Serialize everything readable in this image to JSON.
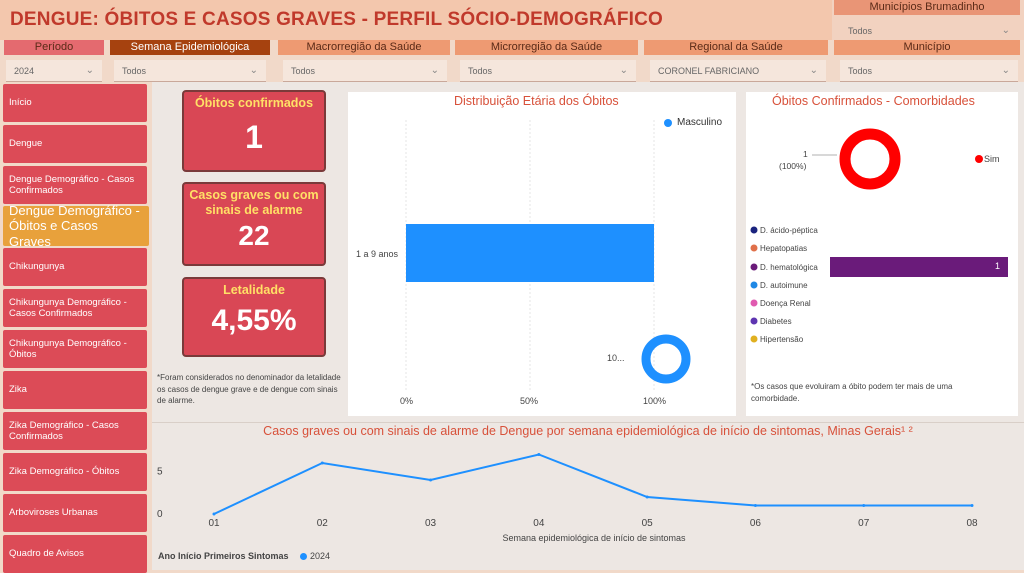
{
  "header": {
    "title": "DENGUE: ÓBITOS E CASOS GRAVES - PERFIL SÓCIO-DEMOGRÁFICO"
  },
  "filters": {
    "periodo": {
      "label": "Período",
      "value": "2024"
    },
    "semana": {
      "label": "Semana Epidemiológica",
      "value": "Todos"
    },
    "macro": {
      "label": "Macrorregião da Saúde",
      "value": "Todos"
    },
    "micro": {
      "label": "Microrregião da Saúde",
      "value": "Todos"
    },
    "regional": {
      "label": "Regional da Saúde",
      "value": "CORONEL FABRICIANO"
    },
    "municipio": {
      "label": "Município",
      "value": "Todos"
    },
    "municipios_bru": {
      "label": "Municípios Brumadinho",
      "value": "Todos"
    }
  },
  "sidebar": {
    "items": [
      {
        "label": "Início"
      },
      {
        "label": "Dengue"
      },
      {
        "label": "Dengue Demográfico - Casos Confirmados"
      },
      {
        "label": "Dengue Demográfico - Óbitos e Casos Graves"
      },
      {
        "label": "Chikungunya"
      },
      {
        "label": "Chikungunya Demográfico - Casos Confirmados"
      },
      {
        "label": "Chikungunya Demográfico - Óbitos"
      },
      {
        "label": "Zika"
      },
      {
        "label": "Zika Demográfico - Casos Confirmados"
      },
      {
        "label": "Zika Demográfico - Óbitos"
      },
      {
        "label": "Arboviroses Urbanas"
      },
      {
        "label": "Quadro de Avisos"
      }
    ]
  },
  "kpis": {
    "obitos": {
      "title": "Óbitos confirmados",
      "value": "1"
    },
    "graves": {
      "title": "Casos graves ou com sinais de alarme",
      "value": "22"
    },
    "letalidade": {
      "title": "Letalidade",
      "value": "4,55%"
    },
    "note": "*Foram considerados no denominador da letalidade os casos de dengue grave e de dengue com sinais de alarme."
  },
  "colors": {
    "accent_red": "#d94755",
    "active_orange": "#e8a13b",
    "bar_blue": "#1e90ff",
    "donut_red": "#ff0000",
    "comorb_purple": "#6a1b7a"
  },
  "age_chart": {
    "title": "Distribuição Etária dos Óbitos",
    "legend": "Masculino",
    "category": "1 a 9 anos",
    "ticks": [
      "0%",
      "50%",
      "100%"
    ],
    "donut_label": "10..."
  },
  "comorb_chart": {
    "title": "Óbitos Confirmados - Comorbidades",
    "donut_label_count": "1",
    "donut_label_pct": "(100%)",
    "donut_legend": "Sim",
    "legend": [
      {
        "label": "D. ácido-péptica",
        "color": "#1a237e"
      },
      {
        "label": "Hepatopatias",
        "color": "#e0704a"
      },
      {
        "label": "D. hematológica",
        "color": "#6a1b7a"
      },
      {
        "label": "D. autoimune",
        "color": "#1e88e5"
      },
      {
        "label": "Doença Renal",
        "color": "#e05ab0"
      },
      {
        "label": "Diabetes",
        "color": "#5e35b1"
      },
      {
        "label": "Hipertensão",
        "color": "#e0b020"
      }
    ],
    "bar_value": "1",
    "note": "*Os casos que evoluiram a óbito podem ter mais de uma comorbidade."
  },
  "chart_data": {
    "type": "line",
    "title": "Casos graves ou com sinais de alarme de Dengue por semana epidemiológica de início de sintomas, Minas Gerais¹ ²",
    "xlabel": "Semana epidemiológica de início de sintomas",
    "ylabel": "",
    "categories": [
      "01",
      "02",
      "03",
      "04",
      "05",
      "06",
      "07",
      "08"
    ],
    "series": [
      {
        "name": "2024",
        "values": [
          0,
          6,
          4,
          7,
          2,
          1,
          1,
          1
        ]
      }
    ],
    "yticks": [
      "5",
      "0"
    ],
    "ylim": [
      0,
      8
    ],
    "legend_title": "Ano Início Primeiros Sintomas",
    "grid": false
  }
}
